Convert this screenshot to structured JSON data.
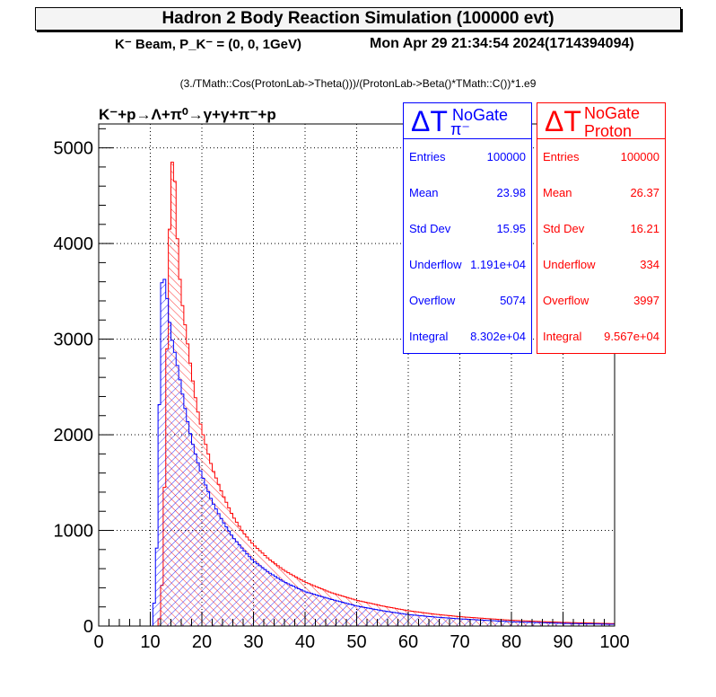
{
  "title": "Hadron 2 Body Reaction Simulation (100000 evt)",
  "beam_label": "K⁻ Beam, P_K⁻ = (0, 0, 1GeV)",
  "date_label": "Mon Apr 29 21:34:54 2024(1714394094)",
  "formula_label": "(3./TMath::Cos(ProtonLab->Theta()))/(ProtonLab->Beta()*TMath::C())*1.e9",
  "reaction_label": "K⁻+p→Λ+π⁰→γ+γ+π⁻+p",
  "stats_pi": {
    "title": "ΔT NoGate π⁻",
    "color": "#0000ff",
    "rows": [
      {
        "k": "Entries",
        "v": "100000"
      },
      {
        "k": "Mean",
        "v": "23.98"
      },
      {
        "k": "Std Dev",
        "v": "15.95"
      },
      {
        "k": "Underflow",
        "v": "1.191e+04"
      },
      {
        "k": "Overflow",
        "v": "5074"
      },
      {
        "k": "Integral",
        "v": "8.302e+04"
      }
    ]
  },
  "stats_p": {
    "title": "ΔT NoGate Proton",
    "color": "#ff0000",
    "rows": [
      {
        "k": "Entries",
        "v": "100000"
      },
      {
        "k": "Mean",
        "v": "26.37"
      },
      {
        "k": "Std Dev",
        "v": "16.21"
      },
      {
        "k": "Underflow",
        "v": "334"
      },
      {
        "k": "Overflow",
        "v": "3997"
      },
      {
        "k": "Integral",
        "v": "9.567e+04"
      }
    ]
  },
  "chart_data": {
    "type": "histogram",
    "xlim": [
      0,
      100
    ],
    "ylim": [
      0,
      5250
    ],
    "xticks": [
      0,
      10,
      20,
      30,
      40,
      50,
      60,
      70,
      80,
      90,
      100
    ],
    "yticks": [
      0,
      1000,
      2000,
      3000,
      4000,
      5000
    ],
    "grid": true,
    "bin_width": 0.5,
    "series": [
      {
        "name": "π⁻",
        "color": "#0000ff",
        "points": [
          [
            10.5,
            0
          ],
          [
            11,
            480
          ],
          [
            11.5,
            1150
          ],
          [
            12,
            3480
          ],
          [
            12.5,
            3700
          ],
          [
            13,
            3550
          ],
          [
            13.5,
            3300
          ],
          [
            14,
            3050
          ],
          [
            15,
            2800
          ],
          [
            16,
            2500
          ],
          [
            17,
            2200
          ],
          [
            18,
            1950
          ],
          [
            19,
            1750
          ],
          [
            20,
            1580
          ],
          [
            22,
            1300
          ],
          [
            24,
            1100
          ],
          [
            26,
            930
          ],
          [
            28,
            800
          ],
          [
            30,
            680
          ],
          [
            33,
            560
          ],
          [
            36,
            460
          ],
          [
            40,
            360
          ],
          [
            45,
            280
          ],
          [
            50,
            210
          ],
          [
            55,
            160
          ],
          [
            60,
            120
          ],
          [
            65,
            95
          ],
          [
            70,
            75
          ],
          [
            80,
            45
          ],
          [
            90,
            28
          ],
          [
            100,
            18
          ]
        ]
      },
      {
        "name": "Proton",
        "color": "#ff0000",
        "points": [
          [
            11.5,
            0
          ],
          [
            12,
            150
          ],
          [
            12.5,
            700
          ],
          [
            13,
            2200
          ],
          [
            13.5,
            3600
          ],
          [
            14,
            4700
          ],
          [
            14.5,
            5000
          ],
          [
            15,
            4300
          ],
          [
            15.5,
            3800
          ],
          [
            16,
            3450
          ],
          [
            17,
            3050
          ],
          [
            18,
            2650
          ],
          [
            19,
            2300
          ],
          [
            20,
            2050
          ],
          [
            22,
            1650
          ],
          [
            24,
            1380
          ],
          [
            26,
            1150
          ],
          [
            28,
            980
          ],
          [
            30,
            850
          ],
          [
            33,
            700
          ],
          [
            36,
            580
          ],
          [
            40,
            460
          ],
          [
            45,
            350
          ],
          [
            50,
            270
          ],
          [
            55,
            210
          ],
          [
            60,
            160
          ],
          [
            65,
            125
          ],
          [
            70,
            98
          ],
          [
            80,
            60
          ],
          [
            90,
            38
          ],
          [
            100,
            25
          ]
        ]
      }
    ]
  }
}
